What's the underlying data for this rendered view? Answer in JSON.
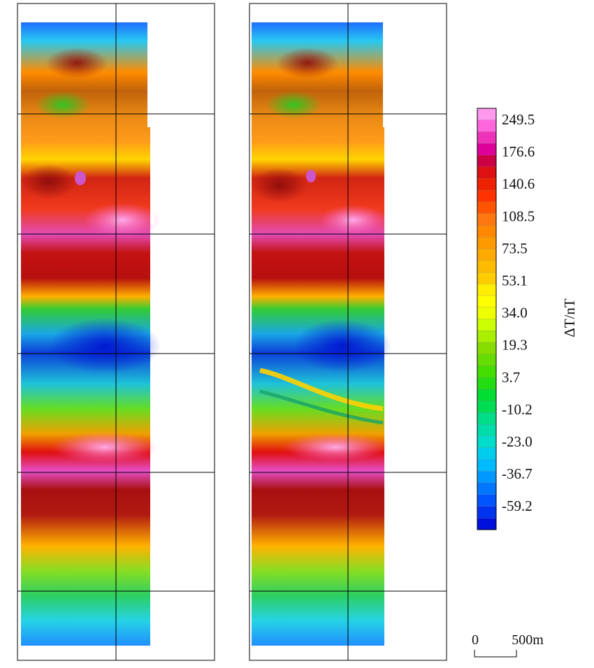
{
  "maps": [
    {
      "id": "left",
      "grid_cols": 2,
      "grid_rows": 6
    },
    {
      "id": "right",
      "grid_cols": 2,
      "grid_rows": 6
    }
  ],
  "colorbar": {
    "title": "ΔT/nT",
    "tick_labels": [
      "249.5",
      "176.6",
      "140.6",
      "108.5",
      "73.5",
      "53.1",
      "34.0",
      "19.3",
      "3.7",
      "-10.2",
      "-23.0",
      "-36.7",
      "-59.2"
    ],
    "colors": [
      "#ff99ee",
      "#ff66dd",
      "#ee33bb",
      "#dd0099",
      "#cc0044",
      "#dd1111",
      "#ee2200",
      "#ff3300",
      "#ff5500",
      "#ff7711",
      "#ff8800",
      "#ff9900",
      "#ffaa00",
      "#ffbb00",
      "#ffcc00",
      "#ffee00",
      "#ffff00",
      "#eeff00",
      "#ccff00",
      "#aaee00",
      "#88dd00",
      "#66dd00",
      "#44dd00",
      "#22dd11",
      "#00dd33",
      "#00dd55",
      "#00dd88",
      "#00ddaa",
      "#00ddcc",
      "#00ccee",
      "#00bbff",
      "#0099ff",
      "#0077ff",
      "#0055ff",
      "#0033ee",
      "#0011dd"
    ]
  },
  "scale_bar": {
    "start_label": "0",
    "end_label": "500m"
  }
}
